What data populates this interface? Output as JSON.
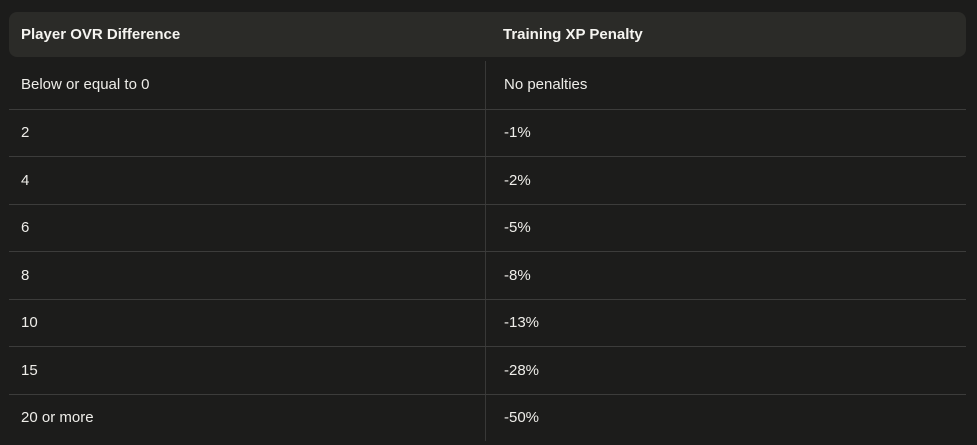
{
  "table": {
    "header": {
      "col1": "Player OVR Difference",
      "col2": "Training XP Penalty"
    },
    "rows": [
      {
        "ovr_difference": "Below or equal to 0",
        "xp_penalty": "No penalties"
      },
      {
        "ovr_difference": "2",
        "xp_penalty": "-1%"
      },
      {
        "ovr_difference": "4",
        "xp_penalty": "-2%"
      },
      {
        "ovr_difference": "6",
        "xp_penalty": "-5%"
      },
      {
        "ovr_difference": "8",
        "xp_penalty": "-8%"
      },
      {
        "ovr_difference": "10",
        "xp_penalty": "-13%"
      },
      {
        "ovr_difference": "15",
        "xp_penalty": "-28%"
      },
      {
        "ovr_difference": "20 or more",
        "xp_penalty": "-50%"
      }
    ]
  },
  "colors": {
    "page_background": "#1c1c1b",
    "header_background": "#2b2b28",
    "horizontal_divider": "#3c3c3b",
    "vertical_divider": "#383837",
    "header_text": "#f5f4f0",
    "row_text": "#eeede9"
  },
  "chart_data": {
    "type": "table",
    "columns": [
      "Player OVR Difference",
      "Training XP Penalty"
    ],
    "rows": [
      [
        "Below or equal to 0",
        "No penalties"
      ],
      [
        "2",
        "-1%"
      ],
      [
        "4",
        "-2%"
      ],
      [
        "6",
        "-5%"
      ],
      [
        "8",
        "-8%"
      ],
      [
        "10",
        "-13%"
      ],
      [
        "15",
        "-28%"
      ],
      [
        "20 or more",
        "-50%"
      ]
    ]
  }
}
